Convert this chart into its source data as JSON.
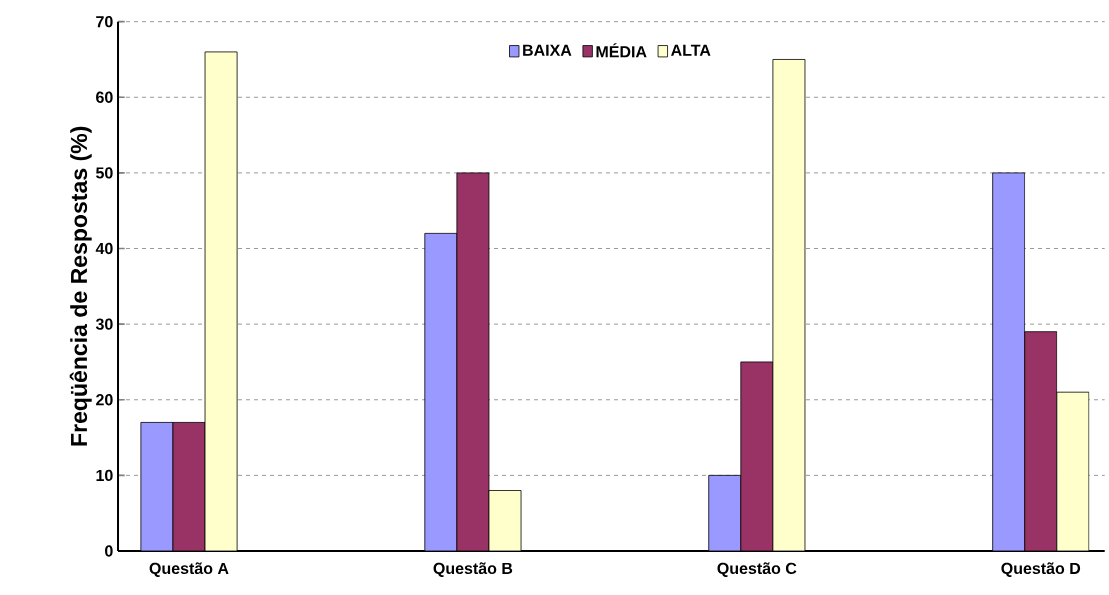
{
  "chart_data": {
    "type": "bar",
    "ylabel": "Freqüência de Respostas (%)",
    "categories": [
      "Questão A",
      "Questão B",
      "Questão C",
      "Questão D"
    ],
    "series": [
      {
        "name": "BAIXA",
        "color": "#9999ff",
        "values": [
          17,
          42,
          10,
          50
        ]
      },
      {
        "name": "MÉDIA",
        "color": "#993366",
        "values": [
          17,
          50,
          25,
          29
        ]
      },
      {
        "name": "ALTA",
        "color": "#ffffcc",
        "values": [
          66,
          8,
          65,
          21
        ]
      }
    ],
    "ylim": [
      0,
      70
    ],
    "yticks": [
      0,
      10,
      20,
      30,
      40,
      50,
      60,
      70
    ],
    "grid": "y",
    "legend": "top"
  }
}
